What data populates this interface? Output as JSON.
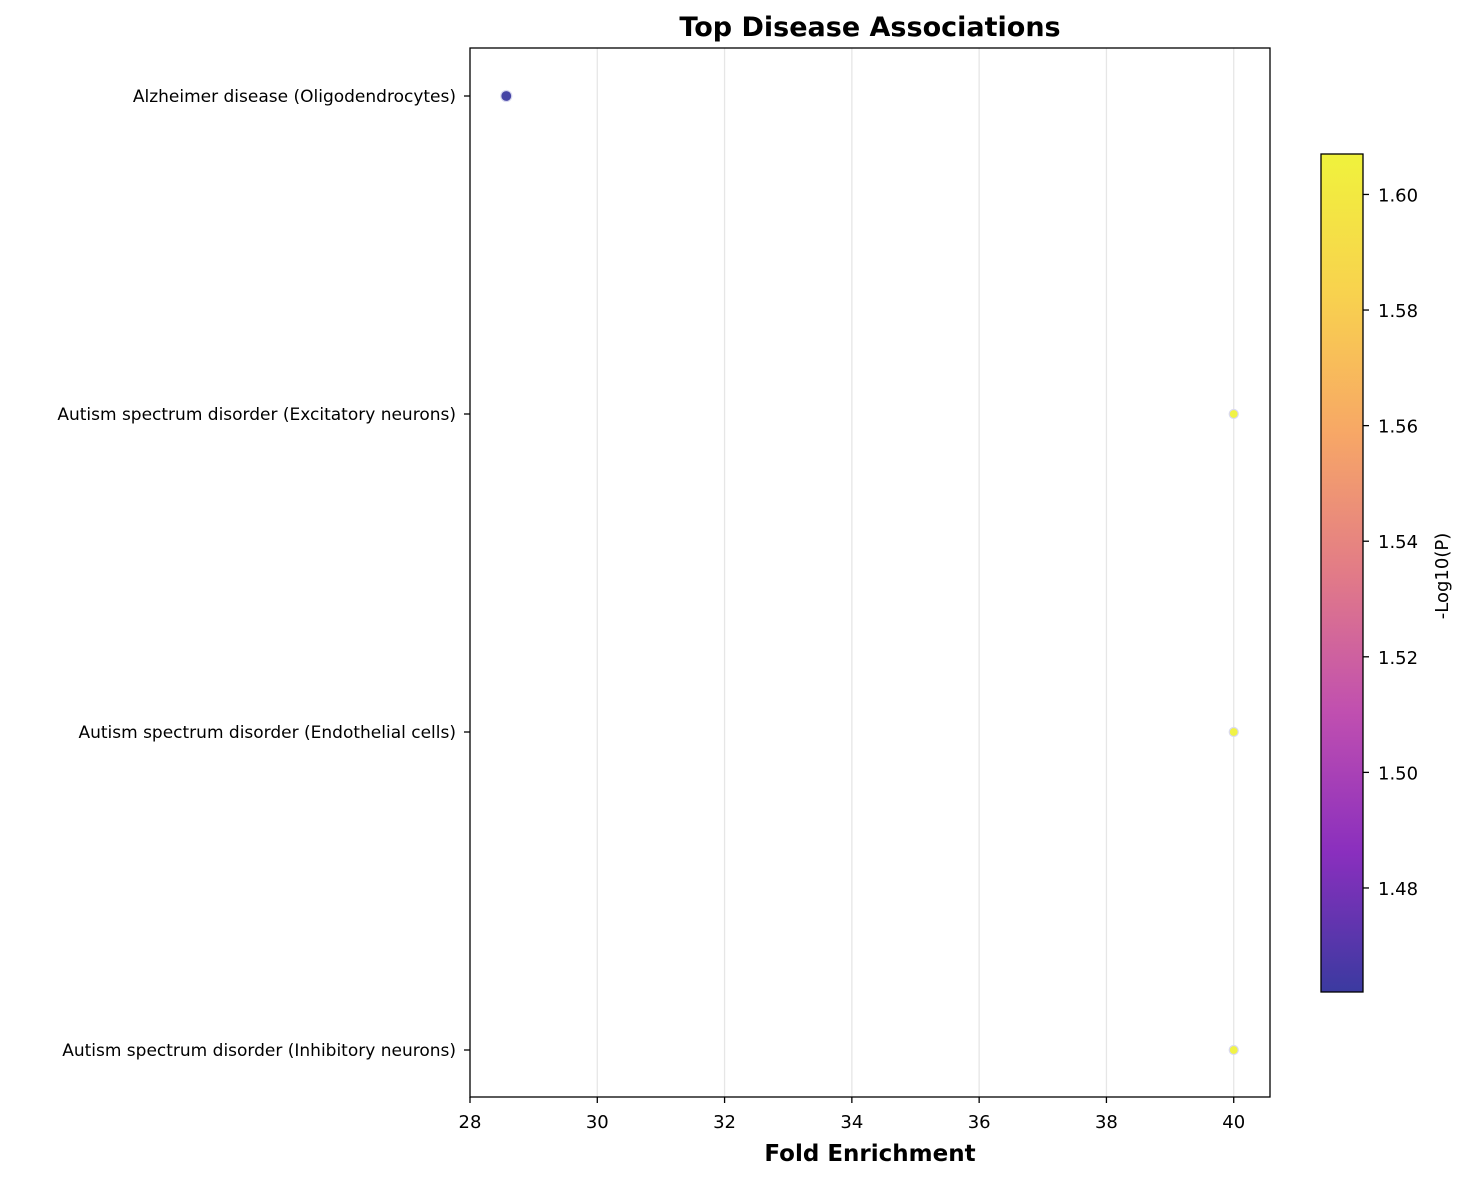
{
  "chart_data": {
    "type": "scatter",
    "title": "Top Disease Associations",
    "xlabel": "Fold Enrichment",
    "ylabel": "",
    "xlim": [
      28,
      40.57
    ],
    "xticks": [
      28,
      30,
      32,
      34,
      36,
      38,
      40
    ],
    "grid": "x-only",
    "categories": [
      "Alzheimer disease (Oligodendrocytes)",
      "Autism spectrum disorder (Excitatory neurons)",
      "Autism spectrum disorder (Endothelial cells)",
      "Autism spectrum disorder (Inhibitory neurons)"
    ],
    "points": [
      {
        "category": "Alzheimer disease (Oligodendrocytes)",
        "x": 28.57,
        "neg_log10_p": 1.462,
        "color": "#3b3aa0"
      },
      {
        "category": "Autism spectrum disorder (Excitatory neurons)",
        "x": 40.0,
        "neg_log10_p": 1.607,
        "color": "#f0f23c"
      },
      {
        "category": "Autism spectrum disorder (Endothelial cells)",
        "x": 40.0,
        "neg_log10_p": 1.607,
        "color": "#f0f23c"
      },
      {
        "category": "Autism spectrum disorder (Inhibitory neurons)",
        "x": 40.0,
        "neg_log10_p": 1.607,
        "color": "#f0f23c"
      }
    ],
    "colorbar": {
      "label": "-Log10(P)",
      "colormap": "plasma",
      "range": [
        1.462,
        1.607
      ],
      "ticks": [
        "1.48",
        "1.50",
        "1.52",
        "1.54",
        "1.56",
        "1.58",
        "1.60"
      ],
      "stops": [
        "#3b3aa0",
        "#8a2fbe",
        "#c04fb0",
        "#e27b87",
        "#f7a766",
        "#f8d24e",
        "#f0f23c"
      ]
    }
  }
}
